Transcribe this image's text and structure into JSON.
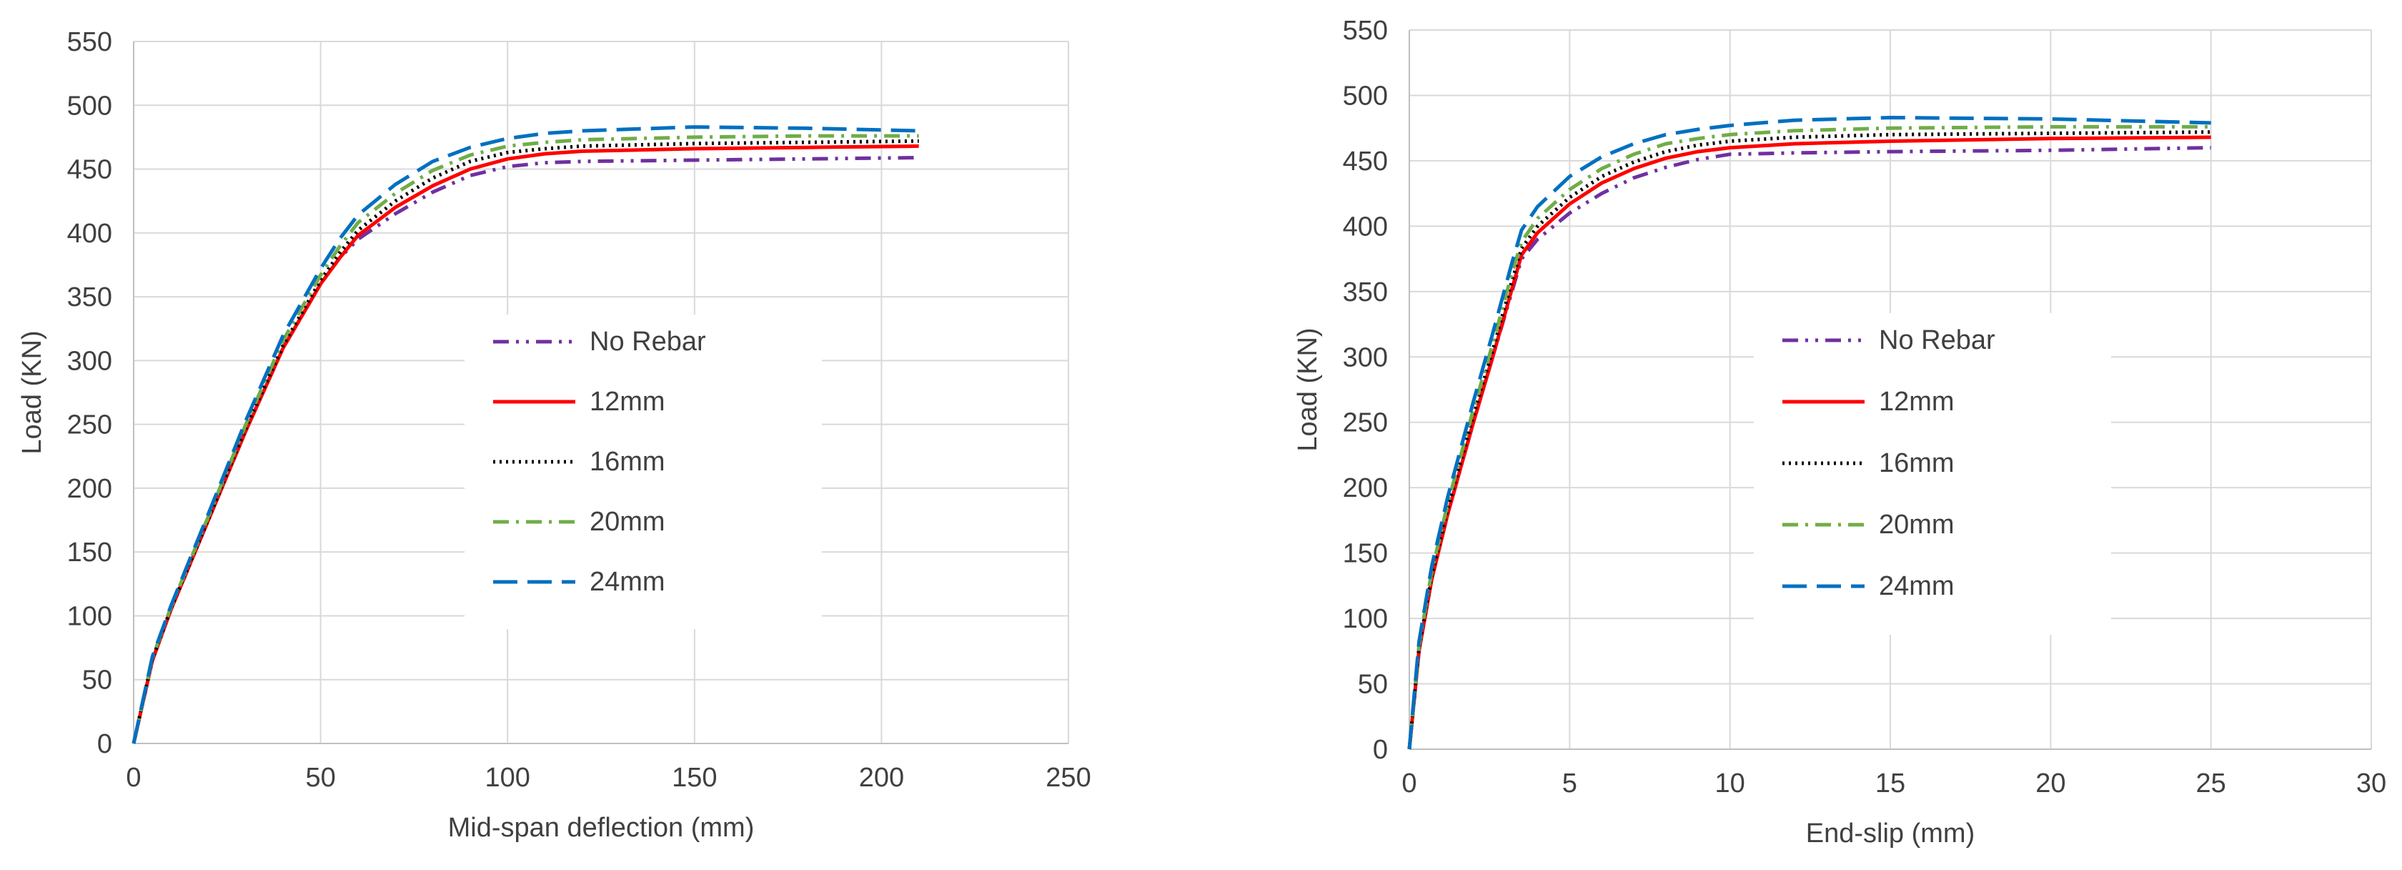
{
  "colors": {
    "no_rebar": "#7030A0",
    "12mm": "#FF0000",
    "16mm": "#000000",
    "20mm": "#70AD47",
    "24mm": "#0070C0",
    "grid": "#D9D9D9",
    "axis_text": "#404040"
  },
  "chart_data": [
    {
      "type": "line",
      "title": "",
      "xlabel": "Mid-span deflection (mm)",
      "ylabel": "Load (KN)",
      "xlim": [
        0,
        250
      ],
      "ylim": [
        0,
        550
      ],
      "xticks": [
        0,
        50,
        100,
        150,
        200,
        250
      ],
      "yticks": [
        0,
        50,
        100,
        150,
        200,
        250,
        300,
        350,
        400,
        450,
        500,
        550
      ],
      "grid": true,
      "legend_position": "center-right",
      "series": [
        {
          "name": "No Rebar",
          "color_key": "no_rebar",
          "dash": "dash-dot-dot",
          "x": [
            0,
            5,
            10,
            20,
            30,
            40,
            50,
            55,
            60,
            70,
            80,
            90,
            100,
            110,
            120,
            150,
            180,
            210
          ],
          "y": [
            0,
            65,
            105,
            175,
            245,
            310,
            360,
            380,
            395,
            415,
            432,
            445,
            452,
            455,
            456,
            457,
            458,
            459
          ]
        },
        {
          "name": "12mm",
          "color_key": "12mm",
          "dash": "solid",
          "x": [
            0,
            5,
            10,
            20,
            30,
            40,
            50,
            55,
            60,
            70,
            80,
            90,
            100,
            110,
            120,
            150,
            180,
            210
          ],
          "y": [
            0,
            65,
            105,
            175,
            245,
            310,
            360,
            380,
            398,
            420,
            437,
            450,
            458,
            462,
            464,
            466,
            467,
            468
          ]
        },
        {
          "name": "16mm",
          "color_key": "16mm",
          "dash": "dotted",
          "x": [
            0,
            5,
            10,
            20,
            30,
            40,
            50,
            55,
            60,
            70,
            80,
            90,
            100,
            110,
            120,
            150,
            180,
            210
          ],
          "y": [
            0,
            66,
            106,
            176,
            247,
            312,
            363,
            384,
            402,
            425,
            443,
            456,
            463,
            466,
            468,
            470,
            471,
            472
          ]
        },
        {
          "name": "20mm",
          "color_key": "20mm",
          "dash": "dash-dot",
          "x": [
            0,
            5,
            10,
            20,
            30,
            40,
            50,
            55,
            60,
            70,
            80,
            90,
            100,
            110,
            120,
            150,
            180,
            210
          ],
          "y": [
            0,
            67,
            107,
            178,
            250,
            316,
            367,
            389,
            408,
            431,
            449,
            461,
            468,
            471,
            473,
            475,
            476,
            476
          ]
        },
        {
          "name": "24mm",
          "color_key": "24mm",
          "dash": "long-dash",
          "x": [
            0,
            5,
            10,
            20,
            30,
            40,
            50,
            55,
            60,
            70,
            80,
            90,
            100,
            110,
            120,
            150,
            180,
            210
          ],
          "y": [
            0,
            68,
            108,
            180,
            253,
            320,
            372,
            395,
            414,
            438,
            456,
            467,
            474,
            478,
            480,
            483,
            482,
            480
          ]
        }
      ]
    },
    {
      "type": "line",
      "title": "",
      "xlabel": "End-slip (mm)",
      "ylabel": "Load (KN)",
      "xlim": [
        0,
        30
      ],
      "ylim": [
        0,
        550
      ],
      "xticks": [
        0,
        5,
        10,
        15,
        20,
        25,
        30
      ],
      "yticks": [
        0,
        50,
        100,
        150,
        200,
        250,
        300,
        350,
        400,
        450,
        500,
        550
      ],
      "grid": true,
      "legend_position": "center-right",
      "series": [
        {
          "name": "No Rebar",
          "color_key": "no_rebar",
          "dash": "dash-dot-dot",
          "x": [
            0,
            0.3,
            0.7,
            1.2,
            2,
            2.6,
            3.2,
            3.5,
            4,
            5,
            6,
            7,
            8,
            9,
            10,
            12,
            15,
            20,
            25
          ],
          "y": [
            0,
            75,
            130,
            180,
            250,
            300,
            350,
            375,
            390,
            410,
            425,
            437,
            445,
            451,
            455,
            456,
            457,
            458,
            460
          ]
        },
        {
          "name": "12mm",
          "color_key": "12mm",
          "dash": "solid",
          "x": [
            0,
            0.3,
            0.7,
            1.2,
            2,
            2.6,
            3.2,
            3.5,
            4,
            5,
            6,
            7,
            8,
            9,
            10,
            12,
            15,
            20,
            25
          ],
          "y": [
            0,
            75,
            130,
            180,
            250,
            300,
            352,
            378,
            395,
            417,
            433,
            444,
            452,
            457,
            460,
            463,
            465,
            467,
            468
          ]
        },
        {
          "name": "16mm",
          "color_key": "16mm",
          "dash": "dotted",
          "x": [
            0,
            0.3,
            0.7,
            1.2,
            2,
            2.6,
            3.2,
            3.5,
            4,
            5,
            6,
            7,
            8,
            9,
            10,
            12,
            15,
            20,
            25
          ],
          "y": [
            0,
            77,
            133,
            184,
            255,
            305,
            358,
            383,
            400,
            422,
            438,
            449,
            457,
            462,
            465,
            468,
            470,
            471,
            472
          ]
        },
        {
          "name": "20mm",
          "color_key": "20mm",
          "dash": "dash-dot",
          "x": [
            0,
            0.3,
            0.7,
            1.2,
            2,
            2.6,
            3.2,
            3.5,
            4,
            5,
            6,
            7,
            8,
            9,
            10,
            12,
            15,
            20,
            25
          ],
          "y": [
            0,
            79,
            136,
            188,
            260,
            310,
            364,
            388,
            406,
            428,
            444,
            455,
            463,
            467,
            470,
            473,
            475,
            476,
            476
          ]
        },
        {
          "name": "24mm",
          "color_key": "24mm",
          "dash": "long-dash",
          "x": [
            0,
            0.3,
            0.7,
            1.2,
            2,
            2.6,
            3.2,
            3.5,
            4,
            5,
            6,
            7,
            8,
            9,
            10,
            12,
            15,
            20,
            25
          ],
          "y": [
            0,
            82,
            140,
            193,
            266,
            318,
            372,
            397,
            415,
            438,
            453,
            463,
            470,
            474,
            477,
            481,
            483,
            482,
            479
          ]
        }
      ]
    }
  ]
}
